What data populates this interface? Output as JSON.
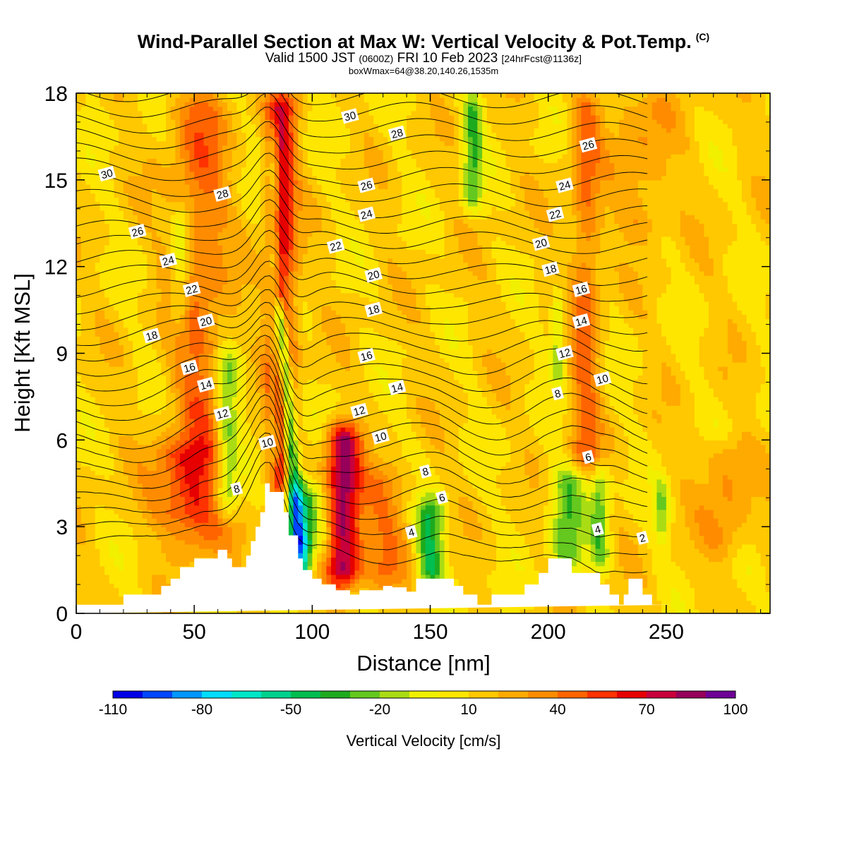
{
  "header": {
    "title": "Wind-Parallel Section at Max W: Vertical Velocity & Pot.Temp.",
    "title_mark": "(C)",
    "valid_prefix": "Valid 1500 JST",
    "valid_z": "(0600Z)",
    "valid_date": "FRI 10 Feb 2023",
    "forecast": "[24hrFcst@1136z]",
    "boxline": "boxWmax=64@38.20,140.26,1535m"
  },
  "chart_data": {
    "type": "heatmap",
    "title": "Wind-Parallel Section at Max W: Vertical Velocity & Pot.Temp.",
    "xlabel": "Distance [nm]",
    "ylabel": "Height [Kft MSL]",
    "xlim": [
      0,
      294
    ],
    "ylim": [
      0,
      18
    ],
    "xticks": [
      0,
      50,
      100,
      150,
      200,
      250
    ],
    "yticks": [
      0,
      3,
      6,
      9,
      12,
      15,
      18
    ],
    "colorbar": {
      "label": "Vertical Velocity [cm/s]",
      "tick_labels": [
        "-110",
        "-80",
        "-50",
        "-20",
        "10",
        "40",
        "70",
        "100"
      ],
      "tick_values": [
        -110,
        -80,
        -50,
        -20,
        10,
        40,
        70,
        100
      ],
      "colors": [
        "#0000e6",
        "#0046ff",
        "#0096ff",
        "#00dcff",
        "#00e6c8",
        "#00d28c",
        "#00be50",
        "#1eaa1e",
        "#64c81e",
        "#aadc14",
        "#f0f000",
        "#ffe600",
        "#ffc800",
        "#ffaa00",
        "#ff8c00",
        "#ff6400",
        "#ff3200",
        "#e60000",
        "#c8003c",
        "#96005a",
        "#6e0096"
      ]
    },
    "terrain": {
      "x": [
        0,
        20,
        20,
        36,
        36,
        40,
        40,
        44,
        44,
        50,
        50,
        60,
        60,
        64,
        64,
        66,
        66,
        72,
        72,
        74,
        74,
        76,
        76,
        78,
        78,
        80,
        80,
        82,
        82,
        88,
        88,
        90,
        90,
        94,
        94,
        96,
        96,
        100,
        100,
        104,
        104,
        110,
        110,
        116,
        116,
        120,
        120,
        130,
        130,
        134,
        134,
        140,
        140,
        144,
        144,
        150,
        150,
        160,
        160,
        164,
        164,
        170,
        170,
        176,
        176,
        190,
        190,
        196,
        196,
        200,
        200,
        204,
        204,
        210,
        210,
        222,
        222,
        226,
        226,
        230,
        230,
        232,
        232,
        234,
        234,
        240,
        240,
        244,
        244,
        250,
        250,
        254,
        254,
        260,
        260,
        294
      ],
      "y": [
        0.3,
        0.3,
        0.65,
        0.65,
        0.95,
        0.95,
        1.2,
        1.2,
        1.6,
        1.6,
        1.9,
        1.9,
        2.2,
        2.2,
        1.9,
        1.9,
        1.6,
        1.6,
        2.0,
        2.0,
        2.5,
        2.5,
        3.0,
        3.0,
        3.5,
        3.5,
        4.5,
        4.5,
        4.2,
        4.2,
        3.5,
        3.5,
        2.7,
        2.7,
        1.9,
        1.9,
        1.5,
        1.5,
        1.2,
        1.2,
        1.0,
        1.0,
        0.8,
        0.8,
        0.65,
        0.65,
        0.8,
        0.8,
        0.95,
        0.95,
        0.9,
        0.9,
        0.75,
        0.75,
        1.2,
        1.2,
        1.2,
        1.2,
        0.95,
        0.95,
        0.65,
        0.65,
        0.3,
        0.3,
        0.65,
        0.65,
        1.0,
        1.0,
        1.4,
        1.4,
        1.9,
        1.9,
        1.9,
        1.9,
        1.4,
        1.4,
        1.0,
        1.0,
        0.65,
        0.65,
        0.3,
        0.3,
        0.65,
        0.65,
        1.2,
        1.2,
        0.65,
        0.65,
        0.3,
        0.3,
        0.3,
        0.3
      ]
    },
    "updrafts": [
      {
        "x": 87,
        "z_min": 1.5,
        "z_max": 18,
        "width": 6,
        "w": 55
      },
      {
        "x": 113,
        "z_min": 1.0,
        "z_max": 6.5,
        "width": 7,
        "w": 75
      },
      {
        "x": 52,
        "z_min": 2,
        "z_max": 18,
        "width": 12,
        "w": 30
      },
      {
        "x": 216,
        "z_min": 5,
        "z_max": 18,
        "width": 6,
        "w": 30
      },
      {
        "x": 45,
        "z_min": 3,
        "z_max": 6,
        "width": 14,
        "w": 28
      },
      {
        "x": 130,
        "z_min": 1.0,
        "z_max": 5,
        "width": 12,
        "w": 25
      },
      {
        "x": 240,
        "z_min": 13,
        "z_max": 18,
        "width": 12,
        "w": 18
      },
      {
        "x": 275,
        "z_min": 2,
        "z_max": 6,
        "width": 10,
        "w": 20
      }
    ],
    "downdrafts": [
      {
        "x0": 86,
        "x1": 95,
        "z_top": 11,
        "w": -70
      },
      {
        "x": 95,
        "z_min": 2.0,
        "z_max": 4.5,
        "width": 10,
        "w": -45
      },
      {
        "x": 64,
        "z_min": 3.5,
        "z_max": 9,
        "width": 5,
        "w": -28
      },
      {
        "x": 44,
        "z_min": 10,
        "z_max": 14,
        "width": 4,
        "w": -18
      },
      {
        "x": 150,
        "z_min": 1.0,
        "z_max": 4,
        "width": 6,
        "w": -40
      },
      {
        "x": 168,
        "z_min": 14,
        "z_max": 18,
        "width": 4,
        "w": -28
      },
      {
        "x": 208,
        "z_min": 1.5,
        "z_max": 5,
        "width": 7,
        "w": -25
      },
      {
        "x": 222,
        "z_min": 1.5,
        "z_max": 5,
        "width": 4,
        "w": -25
      },
      {
        "x": 204,
        "z_min": 8,
        "z_max": 11,
        "width": 3,
        "w": -18
      },
      {
        "x": 248,
        "z_min": 2.5,
        "z_max": 4.5,
        "width": 3,
        "w": -18
      },
      {
        "x": 84,
        "z_min": 5,
        "z_max": 17,
        "width": 2,
        "w": -15
      }
    ],
    "theta_contours": {
      "levels": [
        2,
        4,
        6,
        8,
        10,
        12,
        14,
        16,
        18,
        20,
        22,
        24,
        26,
        28,
        30
      ],
      "labels": [
        {
          "text": "30",
          "x": 13,
          "z": 15.2
        },
        {
          "text": "30",
          "x": 116,
          "z": 17.2
        },
        {
          "text": "28",
          "x": 62,
          "z": 14.5
        },
        {
          "text": "28",
          "x": 136,
          "z": 16.6
        },
        {
          "text": "26",
          "x": 26,
          "z": 13.2
        },
        {
          "text": "26",
          "x": 123,
          "z": 14.8
        },
        {
          "text": "26",
          "x": 217,
          "z": 16.2
        },
        {
          "text": "24",
          "x": 39,
          "z": 12.2
        },
        {
          "text": "24",
          "x": 123,
          "z": 13.8
        },
        {
          "text": "24",
          "x": 207,
          "z": 14.8
        },
        {
          "text": "22",
          "x": 49,
          "z": 11.2
        },
        {
          "text": "22",
          "x": 110,
          "z": 12.7
        },
        {
          "text": "22",
          "x": 203,
          "z": 13.8
        },
        {
          "text": "20",
          "x": 55,
          "z": 10.1
        },
        {
          "text": "20",
          "x": 126,
          "z": 11.7
        },
        {
          "text": "20",
          "x": 197,
          "z": 12.8
        },
        {
          "text": "18",
          "x": 32,
          "z": 9.6
        },
        {
          "text": "18",
          "x": 126,
          "z": 10.5
        },
        {
          "text": "18",
          "x": 201,
          "z": 11.9
        },
        {
          "text": "16",
          "x": 48,
          "z": 8.5
        },
        {
          "text": "16",
          "x": 123,
          "z": 8.9
        },
        {
          "text": "16",
          "x": 214,
          "z": 11.2
        },
        {
          "text": "14",
          "x": 55,
          "z": 7.9
        },
        {
          "text": "14",
          "x": 136,
          "z": 7.8
        },
        {
          "text": "14",
          "x": 214,
          "z": 10.1
        },
        {
          "text": "12",
          "x": 62,
          "z": 6.9
        },
        {
          "text": "12",
          "x": 120,
          "z": 7.0
        },
        {
          "text": "12",
          "x": 207,
          "z": 9.0
        },
        {
          "text": "10",
          "x": 81,
          "z": 5.9
        },
        {
          "text": "10",
          "x": 129,
          "z": 6.1
        },
        {
          "text": "10",
          "x": 223,
          "z": 8.1
        },
        {
          "text": "8",
          "x": 68,
          "z": 4.3
        },
        {
          "text": "8",
          "x": 148,
          "z": 4.9
        },
        {
          "text": "8",
          "x": 204,
          "z": 7.6
        },
        {
          "text": "6",
          "x": 155,
          "z": 4.0
        },
        {
          "text": "6",
          "x": 217,
          "z": 5.4
        },
        {
          "text": "4",
          "x": 142,
          "z": 2.8
        },
        {
          "text": "4",
          "x": 221,
          "z": 2.9
        },
        {
          "text": "2",
          "x": 240,
          "z": 2.6
        }
      ]
    },
    "grid": false
  }
}
